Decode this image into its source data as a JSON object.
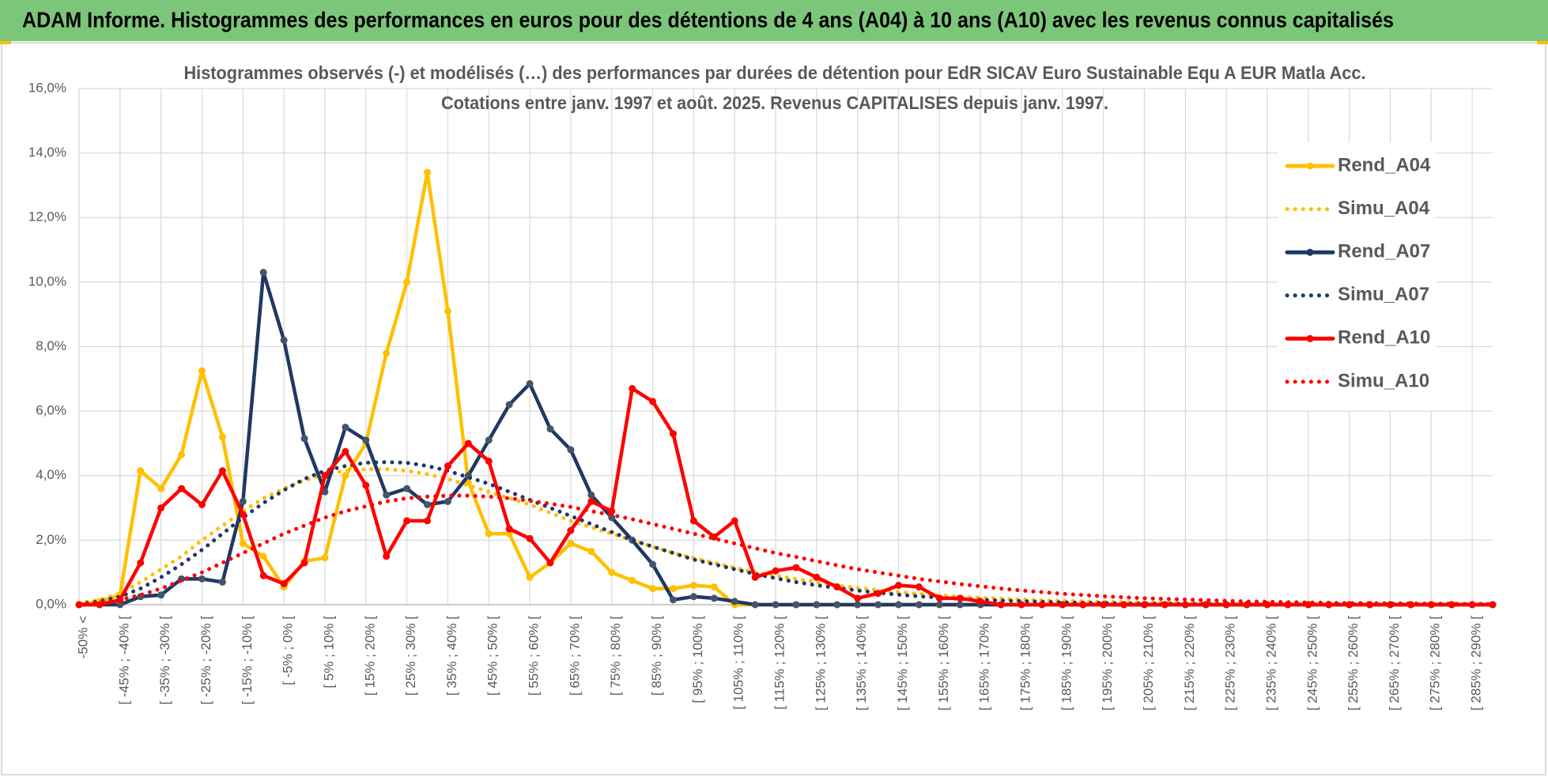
{
  "header": {
    "title": "ADAM Informe. Histogrammes des performances en euros pour des détentions de 4 ans (A04) à 10 ans (A10) avec les revenus connus capitalisés"
  },
  "chart_data": {
    "type": "line",
    "title": "Histogrammes observés (-) et modélisés (…) des performances par durées de détention pour EdR SICAV Euro Sustainable Equ A EUR Matla Acc.",
    "subtitle": "Cotations entre janv. 1997 et août. 2025. Revenus CAPITALISES depuis janv. 1997.",
    "categories": [
      "-50% <",
      null,
      "[ -45% ; -40% [",
      null,
      "[ -35% ; -30% [",
      null,
      "[ -25% ; -20% [",
      null,
      "[ -15% ; -10% [",
      null,
      "[ -5% ; 0% [",
      null,
      "[ 5% ; 10% [",
      null,
      "[ 15% ; 20% [",
      null,
      "[ 25% ; 30% [",
      null,
      "[ 35% ; 40% [",
      null,
      "[ 45% ; 50% [",
      null,
      "[ 55% ; 60% [",
      null,
      "[ 65% ; 70% [",
      null,
      "[ 75% ; 80% [",
      null,
      "[ 85% ; 90% [",
      null,
      "[ 95% ; 100% [",
      null,
      "[ 105% ; 110% [",
      null,
      "[ 115% ; 120% [",
      null,
      "[ 125% ; 130% [",
      null,
      "[ 135% ; 140% [",
      null,
      "[ 145% ; 150% [",
      null,
      "[ 155% ; 160% [",
      null,
      "[ 165% ; 170% [",
      null,
      "[ 175% ; 180% [",
      null,
      "[ 185% ; 190% [",
      null,
      "[ 195% ; 200% [",
      null,
      "[ 205% ; 210% [",
      null,
      "[ 215% ; 220% [",
      null,
      "[ 225% ; 230% [",
      null,
      "[ 235% ; 240% [",
      null,
      "[ 245% ; 250% [",
      null,
      "[ 255% ; 260% [",
      null,
      "[ 265% ; 270% [",
      null,
      "[ 275% ; 280% [",
      null,
      "[ 285% ; 290% [",
      null
    ],
    "ylim": [
      0,
      16
    ],
    "yticks": [
      {
        "value": 0,
        "label": "0,0%"
      },
      {
        "value": 2,
        "label": "2,0%"
      },
      {
        "value": 4,
        "label": "4,0%"
      },
      {
        "value": 6,
        "label": "6,0%"
      },
      {
        "value": 8,
        "label": "8,0%"
      },
      {
        "value": 10,
        "label": "10,0%"
      },
      {
        "value": 12,
        "label": "12,0%"
      },
      {
        "value": 14,
        "label": "14,0%"
      },
      {
        "value": 16,
        "label": "16,0%"
      }
    ],
    "grid": true,
    "legend": "right",
    "series": [
      {
        "name": "Rend_A04",
        "color": "#FFC000",
        "line_style": "solid",
        "markers": true,
        "values": [
          0,
          0.1,
          0.3,
          4.15,
          3.6,
          4.65,
          7.25,
          5.2,
          1.9,
          1.5,
          0.55,
          1.35,
          1.45,
          4.0,
          5.0,
          7.8,
          10.0,
          13.4,
          9.1,
          3.8,
          2.2,
          2.2,
          0.85,
          1.3,
          1.9,
          1.65,
          1.0,
          0.75,
          0.5,
          0.5,
          0.6,
          0.55,
          0,
          0,
          0,
          0,
          0,
          0,
          0,
          0,
          0,
          0,
          0,
          0,
          0,
          0,
          0,
          0,
          0,
          0,
          0,
          0,
          0,
          0,
          0,
          0,
          0,
          0,
          0,
          0,
          0,
          0,
          0,
          0,
          0,
          0,
          0,
          0,
          0,
          0
        ]
      },
      {
        "name": "Simu_A04",
        "color": "#FFC000",
        "line_style": "dotted",
        "markers": false,
        "values": [
          0.05,
          0.15,
          0.35,
          0.7,
          1.1,
          1.5,
          2.0,
          2.45,
          2.9,
          3.3,
          3.6,
          3.85,
          4.05,
          4.15,
          4.2,
          4.2,
          4.15,
          4.05,
          3.9,
          3.7,
          3.5,
          3.3,
          3.1,
          2.85,
          2.6,
          2.4,
          2.2,
          2.0,
          1.8,
          1.6,
          1.45,
          1.3,
          1.15,
          1.0,
          0.9,
          0.8,
          0.7,
          0.6,
          0.52,
          0.45,
          0.39,
          0.34,
          0.29,
          0.25,
          0.22,
          0.19,
          0.16,
          0.14,
          0.12,
          0.1,
          0.09,
          0.08,
          0.07,
          0.06,
          0.05,
          0.04,
          0.04,
          0.03,
          0.03,
          0.02,
          0.02,
          0.02,
          0.01,
          0.01,
          0.01,
          0.01,
          0.01,
          0.01,
          0.01,
          0.01
        ]
      },
      {
        "name": "Rend_A07",
        "color": "#1F3864",
        "line_style": "solid",
        "markers": true,
        "values": [
          0,
          0,
          0,
          0.25,
          0.3,
          0.8,
          0.8,
          0.7,
          3.2,
          10.3,
          8.2,
          5.15,
          3.5,
          5.5,
          5.1,
          3.4,
          3.6,
          3.1,
          3.2,
          4.0,
          5.1,
          6.2,
          6.85,
          5.45,
          4.8,
          3.4,
          2.7,
          2.0,
          1.25,
          0.15,
          0.25,
          0.2,
          0.1,
          0,
          0,
          0,
          0,
          0,
          0,
          0,
          0,
          0,
          0,
          0,
          0,
          0,
          0,
          0,
          0,
          0,
          0,
          0,
          0,
          0,
          0,
          0,
          0,
          0,
          0,
          0,
          0,
          0,
          0,
          0,
          0,
          0,
          0,
          0,
          0,
          0
        ]
      },
      {
        "name": "Simu_A07",
        "color": "#1F3864",
        "line_style": "dotted",
        "markers": false,
        "values": [
          0.02,
          0.1,
          0.25,
          0.5,
          0.85,
          1.25,
          1.7,
          2.2,
          2.7,
          3.15,
          3.55,
          3.9,
          4.15,
          4.3,
          4.4,
          4.42,
          4.4,
          4.3,
          4.15,
          3.95,
          3.75,
          3.5,
          3.25,
          3.0,
          2.75,
          2.5,
          2.25,
          2.0,
          1.8,
          1.6,
          1.4,
          1.25,
          1.1,
          0.95,
          0.82,
          0.7,
          0.6,
          0.52,
          0.44,
          0.37,
          0.31,
          0.26,
          0.22,
          0.18,
          0.15,
          0.13,
          0.11,
          0.09,
          0.07,
          0.06,
          0.05,
          0.04,
          0.03,
          0.03,
          0.02,
          0.02,
          0.01,
          0.01,
          0.01,
          0.01,
          0.01,
          0.01,
          0.01,
          0.01,
          0.01,
          0.01,
          0.01,
          0.01,
          0.01,
          0.01
        ]
      },
      {
        "name": "Rend_A10",
        "color": "#FF0000",
        "line_style": "solid",
        "markers": true,
        "values": [
          0,
          0,
          0.15,
          1.3,
          3.0,
          3.6,
          3.1,
          4.15,
          2.8,
          0.9,
          0.65,
          1.3,
          4.0,
          4.75,
          3.7,
          1.5,
          2.6,
          2.6,
          4.3,
          5.0,
          4.45,
          2.35,
          2.05,
          1.3,
          2.3,
          3.2,
          2.9,
          6.7,
          6.3,
          5.3,
          2.6,
          2.1,
          2.6,
          0.85,
          1.05,
          1.15,
          0.85,
          0.55,
          0.2,
          0.35,
          0.6,
          0.55,
          0.2,
          0.2,
          0.1,
          0,
          0,
          0,
          0,
          0,
          0,
          0,
          0,
          0,
          0,
          0,
          0,
          0,
          0,
          0,
          0,
          0,
          0,
          0,
          0,
          0,
          0,
          0,
          0,
          0
        ]
      },
      {
        "name": "Simu_A10",
        "color": "#FF0000",
        "line_style": "dotted",
        "markers": false,
        "values": [
          0.02,
          0.06,
          0.15,
          0.3,
          0.5,
          0.75,
          1.0,
          1.3,
          1.6,
          1.9,
          2.2,
          2.45,
          2.7,
          2.9,
          3.05,
          3.2,
          3.3,
          3.35,
          3.38,
          3.38,
          3.35,
          3.3,
          3.22,
          3.13,
          3.03,
          2.9,
          2.78,
          2.65,
          2.5,
          2.35,
          2.2,
          2.05,
          1.9,
          1.75,
          1.6,
          1.48,
          1.35,
          1.22,
          1.1,
          1.0,
          0.9,
          0.8,
          0.72,
          0.64,
          0.57,
          0.5,
          0.44,
          0.39,
          0.34,
          0.3,
          0.26,
          0.23,
          0.2,
          0.18,
          0.16,
          0.14,
          0.12,
          0.1,
          0.09,
          0.08,
          0.07,
          0.06,
          0.05,
          0.05,
          0.04,
          0.04,
          0.03,
          0.03,
          0.02,
          0.02
        ]
      }
    ]
  }
}
